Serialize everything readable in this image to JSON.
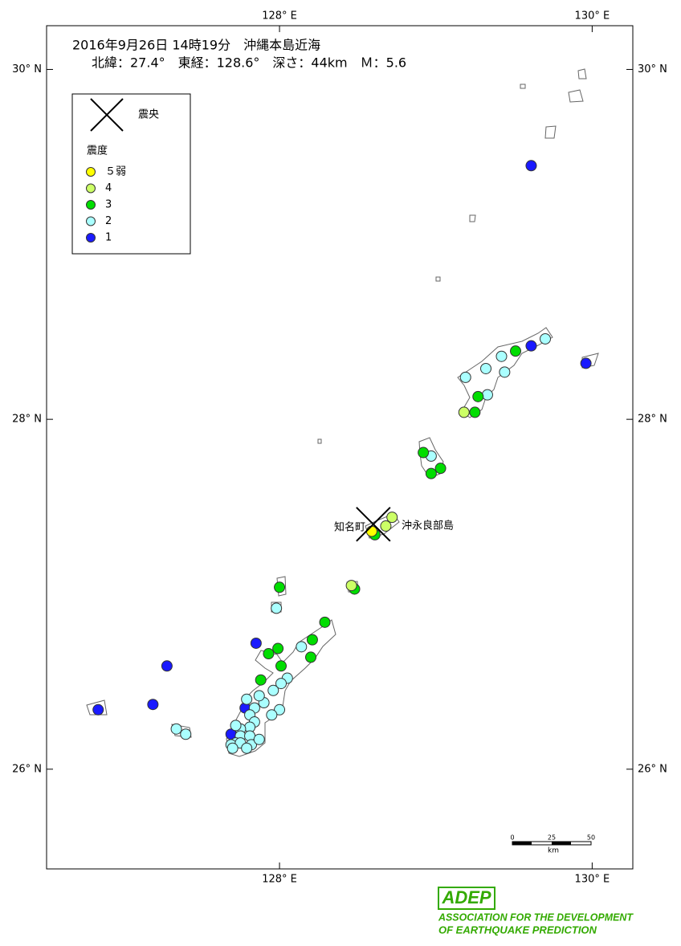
{
  "map": {
    "type": "map",
    "title": "2016年9月26日 14時19分　沖縄本島近海",
    "subtitle": "北緯：27.4°　東経：128.6°　深さ：44km　Ｍ：5.6",
    "xlim": [
      126.51,
      130.26
    ],
    "ylim": [
      25.43,
      30.25
    ],
    "xticks": [
      {
        "value": 128,
        "label": "128° E"
      },
      {
        "value": 130,
        "label": "130° E"
      }
    ],
    "yticks": [
      {
        "value": 26,
        "label": "26° N"
      },
      {
        "value": 28,
        "label": "28° N"
      },
      {
        "value": 30,
        "label": "30° N"
      }
    ],
    "epicenter": {
      "label": "震央",
      "lon": 128.6,
      "lat": 27.4
    },
    "legend_title": "震度",
    "series": [
      {
        "name": "５弱",
        "color": "#ffff00",
        "lon": [
          128.59
        ],
        "lat": [
          27.36
        ]
      },
      {
        "name": "4",
        "color": "#ccff66",
        "lon": [
          128.68,
          128.72,
          129.18,
          128.46
        ],
        "lat": [
          27.39,
          27.44,
          28.04,
          27.05
        ]
      },
      {
        "name": "3",
        "color": "#00dd00",
        "lon": [
          128.61,
          128.48,
          128.0,
          128.29,
          128.21,
          127.99,
          127.93,
          128.01,
          128.2,
          127.88,
          128.92,
          129.03,
          128.97,
          129.25,
          129.27,
          129.51
        ],
        "lat": [
          27.34,
          27.03,
          27.04,
          26.84,
          26.74,
          26.69,
          26.66,
          26.59,
          26.64,
          26.51,
          27.81,
          27.72,
          27.69,
          28.04,
          28.13,
          28.39
        ]
      },
      {
        "name": "2",
        "color": "#aaffff",
        "lon": [
          128.97,
          129.19,
          129.32,
          129.42,
          129.44,
          129.33,
          129.7,
          127.98,
          128.14,
          128.05,
          128.01,
          127.96,
          127.9,
          127.87,
          127.79,
          127.84,
          128.0,
          127.95,
          127.81,
          127.84,
          127.81,
          127.75,
          127.72,
          127.75,
          127.81,
          127.72,
          127.69,
          127.75,
          127.82,
          127.79,
          127.87,
          127.7,
          127.34,
          127.4
        ],
        "lat": [
          27.79,
          28.24,
          28.29,
          28.36,
          28.27,
          28.14,
          28.46,
          26.92,
          26.7,
          26.52,
          26.49,
          26.45,
          26.38,
          26.42,
          26.4,
          26.35,
          26.34,
          26.31,
          26.31,
          26.27,
          26.24,
          26.23,
          26.25,
          26.19,
          26.19,
          26.15,
          26.14,
          26.15,
          26.14,
          26.12,
          26.17,
          26.12,
          26.23,
          26.2
        ]
      },
      {
        "name": "1",
        "color": "#1a1aff",
        "lon": [
          129.61,
          129.61,
          129.96,
          127.85,
          127.28,
          127.19,
          126.84,
          127.78,
          127.69
        ],
        "lat": [
          29.45,
          28.42,
          28.32,
          26.72,
          26.59,
          26.37,
          26.34,
          26.35,
          26.2
        ]
      }
    ],
    "place_labels": [
      "知名町",
      "沖永良部島"
    ],
    "scale_bar": {
      "labels": [
        "0",
        "25",
        "50"
      ],
      "unit": "km"
    },
    "logo": {
      "mark": "ADEP",
      "line1": "ASSOCIATION FOR THE DEVELOPMENT",
      "line2": "OF EARTHQUAKE PREDICTION"
    }
  }
}
